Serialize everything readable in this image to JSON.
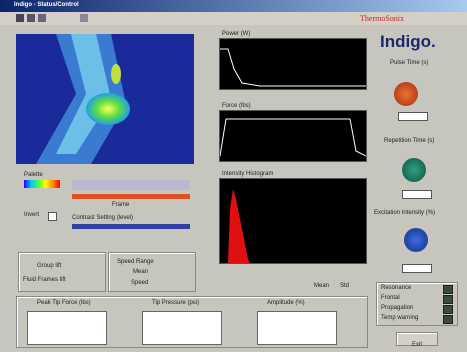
{
  "window": {
    "title": "Indigo - Status/Control"
  },
  "brand": {
    "company": "ThermoSonix",
    "product": "Indigo."
  },
  "plots": {
    "top": "Power (W)",
    "middle": "Force (lbs)",
    "bottom": "Intensity Histogram"
  },
  "left": {
    "palette": "Palette",
    "invert": "Invert",
    "slider1": "Frame",
    "slider2": "Contrast Setting (level)"
  },
  "group": {
    "group_lift": "Group lift",
    "fluid": "Fluid Frames lift"
  },
  "stats": {
    "speed_range": "Speed Range",
    "mean_check": "Mean",
    "speed": "Speed",
    "mean": "Mean",
    "std": "Std"
  },
  "knobs": {
    "pulse": "Pulse Time (s)",
    "repetition": "Repetition Time (s)",
    "intensity": "Excitation Intensity (%)"
  },
  "indicators": [
    "Resonance",
    "Frontal",
    "Propagation",
    "Temp warning"
  ],
  "gauges": [
    "Peak Tip Force (lbs)",
    "Tip Pressure (psi)",
    "Amplitude (%)"
  ],
  "buttons": {
    "exit": "Exit"
  }
}
